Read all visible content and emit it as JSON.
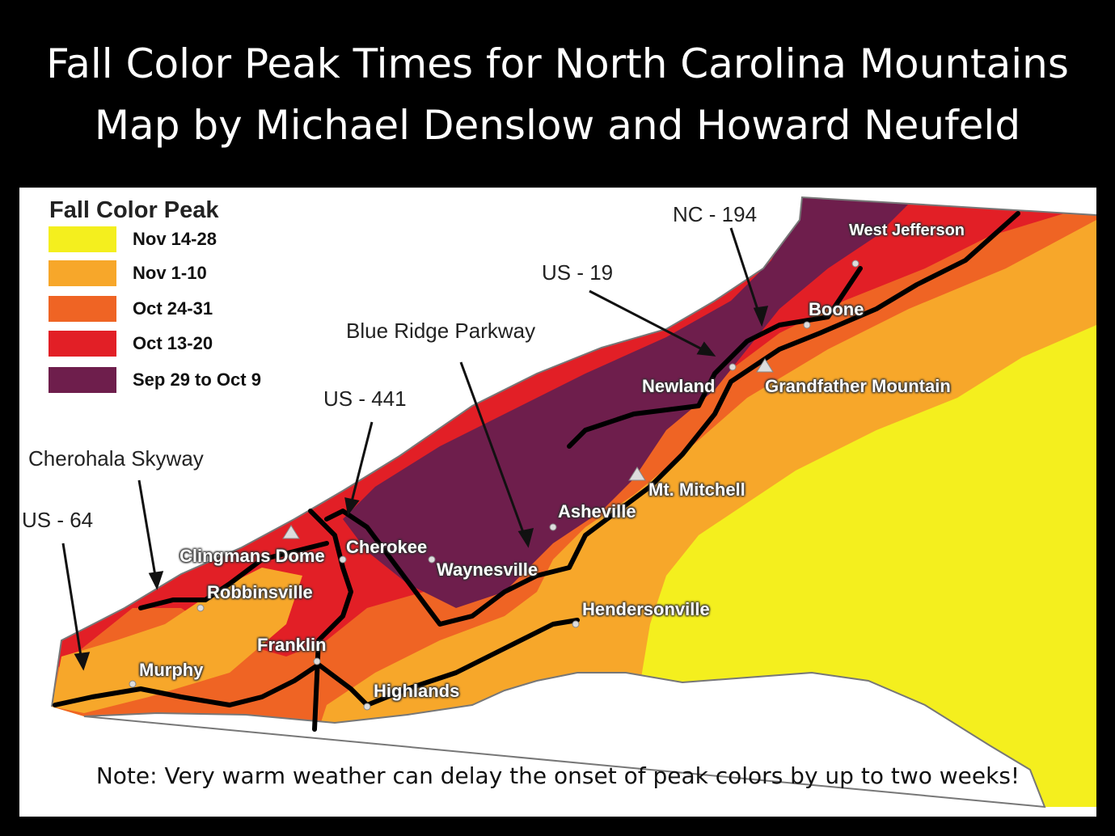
{
  "title_line1": "Fall Color Peak Times for North Carolina Mountains",
  "title_line2": "Map by Michael Denslow and Howard Neufeld",
  "legend": {
    "title": "Fall Color Peak",
    "items": [
      {
        "label": "Nov 14-28",
        "color": "#f4ef1e"
      },
      {
        "label": "Nov 1-10",
        "color": "#f7a72a"
      },
      {
        "label": "Oct 24-31",
        "color": "#ef6424"
      },
      {
        "label": "Oct 13-20",
        "color": "#e21f26"
      },
      {
        "label": "Sep 29 to Oct 9",
        "color": "#6e1e4c"
      }
    ]
  },
  "roads": {
    "nc194": "NC - 194",
    "us19": "US - 19",
    "blue_ridge": "Blue Ridge Parkway",
    "us441": "US - 441",
    "cherohala": "Cherohala Skyway",
    "us64": "US - 64"
  },
  "places": {
    "west_jefferson": "West Jefferson",
    "boone": "Boone",
    "newland": "Newland",
    "grandfather": "Grandfather Mountain",
    "mt_mitchell": "Mt. Mitchell",
    "asheville": "Asheville",
    "cherokee": "Cherokee",
    "waynesville": "Waynesville",
    "clingmans": "Clingmans Dome",
    "robbinsville": "Robbinsville",
    "hendersonville": "Hendersonville",
    "franklin": "Franklin",
    "murphy": "Murphy",
    "highlands": "Highlands"
  },
  "note": "Note: Very warm weather can delay the onset of peak colors by up to two weeks!"
}
